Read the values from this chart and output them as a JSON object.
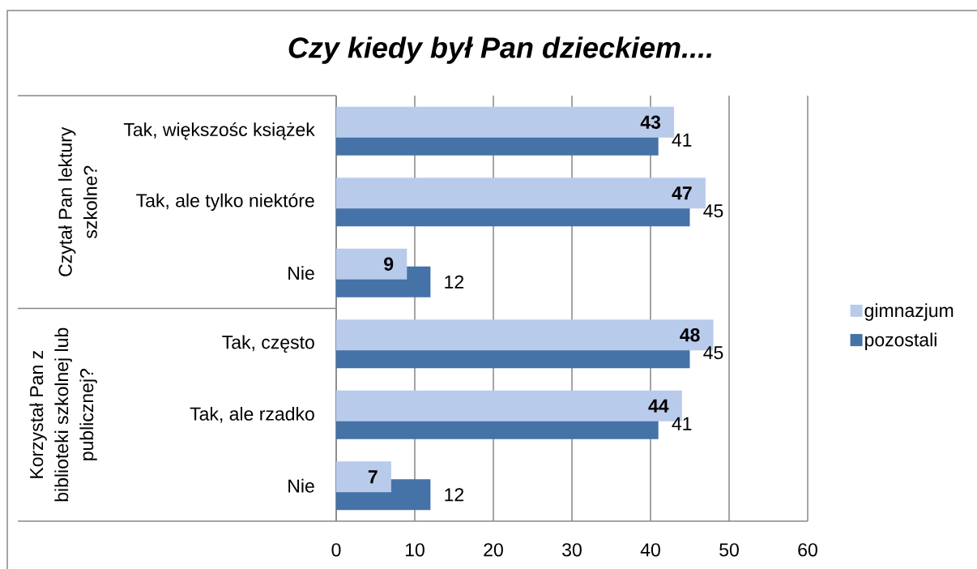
{
  "chart_data": {
    "type": "bar",
    "orientation": "horizontal",
    "title": "Czy kiedy był Pan dzieckiem....",
    "categories": [
      "Tak, większośc książek",
      "Tak, ale tylko niektóre",
      "Nie",
      "Tak, często",
      "Tak, ale rzadko",
      "Nie"
    ],
    "series": [
      {
        "name": "gimnazjum",
        "color": "#b9cbeb",
        "values": [
          43,
          47,
          9,
          48,
          44,
          7
        ]
      },
      {
        "name": "pozostali",
        "color": "#4572a7",
        "values": [
          41,
          45,
          12,
          45,
          41,
          12
        ]
      }
    ],
    "xlim": [
      0,
      60
    ],
    "xticks": [
      0,
      10,
      20,
      30,
      40,
      50,
      60
    ],
    "grid": "x",
    "legend": "right",
    "data_labels": true,
    "annotations": [
      "Czytał Pan lektury szkolne?",
      "Korzystał Pan z biblioteki szkolnej lub publicznej?"
    ]
  }
}
